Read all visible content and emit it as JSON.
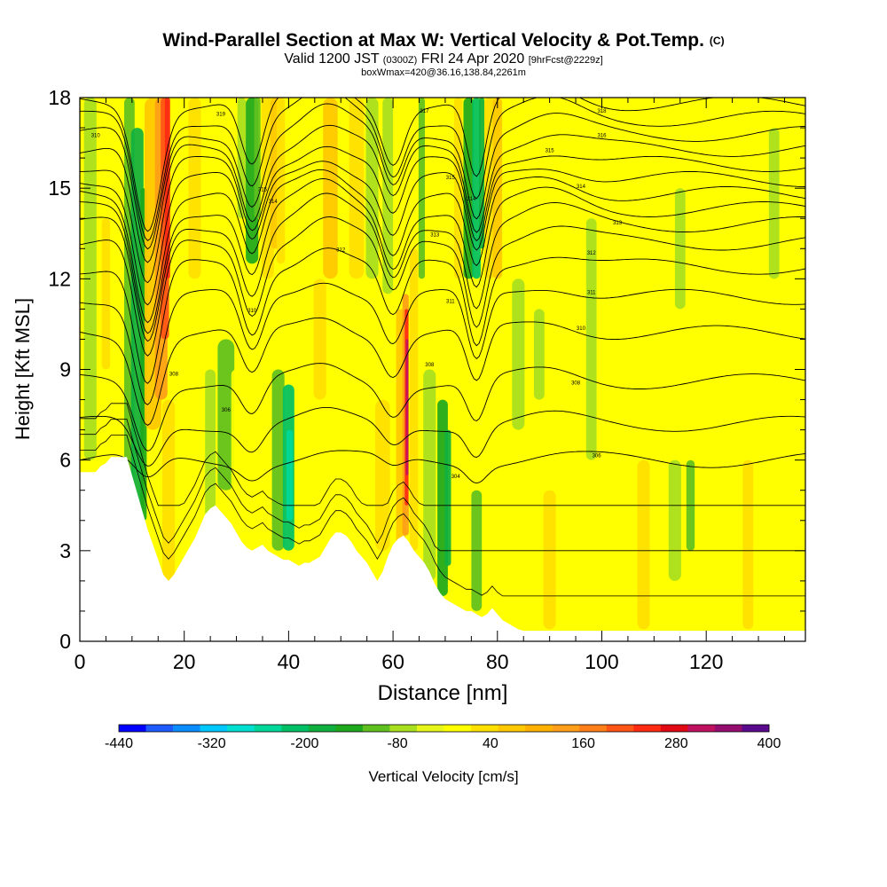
{
  "header": {
    "title": "Wind-Parallel Section at Max W: Vertical Velocity & Pot.Temp.",
    "copyright": "(C)",
    "subtitle_main": "Valid 1200 JST",
    "subtitle_utc": "(0300Z)",
    "subtitle_date": "FRI 24 Apr 2020",
    "subtitle_fcst": "[9hrFcst@2229z]",
    "subsub": "boxWmax=420@36.16,138.84,2261m"
  },
  "chart_data": {
    "type": "heatmap",
    "title": "Wind-Parallel Section at Max W: Vertical Velocity & Pot.Temp.",
    "xlabel": "Distance [nm]",
    "ylabel": "Height [Kft MSL]",
    "xlim": [
      0,
      139
    ],
    "ylim": [
      0,
      18
    ],
    "xticks": [
      0,
      20,
      40,
      60,
      80,
      100,
      120
    ],
    "yticks": [
      0,
      3,
      6,
      9,
      12,
      15,
      18
    ],
    "colorbar": {
      "label": "Vertical Velocity [cm/s]",
      "tick_labels": [
        "-440",
        "-320",
        "-200",
        "-80",
        "40",
        "160",
        "280",
        "400"
      ],
      "tick_values": [
        -440,
        -320,
        -200,
        -80,
        40,
        160,
        280,
        400
      ],
      "min": -440,
      "max": 400,
      "step": 40,
      "colors": [
        "#0000ff",
        "#1e5bff",
        "#0a8cff",
        "#00c8ff",
        "#00dfd0",
        "#00d89a",
        "#00c066",
        "#10b040",
        "#1ea81e",
        "#60c020",
        "#a8e020",
        "#e6f51a",
        "#ffff00",
        "#ffe000",
        "#ffc800",
        "#ffb000",
        "#ff9e18",
        "#ff7f18",
        "#ff5516",
        "#ff2a12",
        "#e10a14",
        "#c01060",
        "#950d6f",
        "#5a0a8c"
      ]
    },
    "terrain_heights_kft": [
      [
        0,
        5.6
      ],
      [
        3,
        5.6
      ],
      [
        4,
        5.8
      ],
      [
        5,
        5.9
      ],
      [
        6,
        6.1
      ],
      [
        9,
        6.1
      ],
      [
        10,
        5.5
      ],
      [
        11,
        4.9
      ],
      [
        12,
        4.3
      ],
      [
        13,
        3.7
      ],
      [
        14,
        3.2
      ],
      [
        15,
        2.7
      ],
      [
        16,
        2.2
      ],
      [
        17,
        2.0
      ],
      [
        18,
        2.2
      ],
      [
        19,
        2.5
      ],
      [
        20,
        2.8
      ],
      [
        21,
        3.1
      ],
      [
        22,
        3.4
      ],
      [
        23,
        3.8
      ],
      [
        24,
        4.2
      ],
      [
        25,
        4.4
      ],
      [
        26,
        4.5
      ],
      [
        27,
        4.3
      ],
      [
        28,
        4.1
      ],
      [
        29,
        3.9
      ],
      [
        30,
        3.6
      ],
      [
        31,
        3.3
      ],
      [
        32,
        3.1
      ],
      [
        33,
        3.0
      ],
      [
        34,
        3.1
      ],
      [
        35,
        3.2
      ],
      [
        36,
        3.0
      ],
      [
        37,
        2.9
      ],
      [
        38,
        2.8
      ],
      [
        39,
        2.7
      ],
      [
        40,
        2.7
      ],
      [
        41,
        2.6
      ],
      [
        42,
        2.5
      ],
      [
        43,
        2.6
      ],
      [
        44,
        2.6
      ],
      [
        45,
        2.7
      ],
      [
        46,
        2.8
      ],
      [
        47,
        3.1
      ],
      [
        48,
        3.4
      ],
      [
        49,
        3.6
      ],
      [
        50,
        3.6
      ],
      [
        51,
        3.5
      ],
      [
        52,
        3.3
      ],
      [
        53,
        3.0
      ],
      [
        54,
        2.8
      ],
      [
        55,
        2.6
      ],
      [
        56,
        2.3
      ],
      [
        57,
        2.0
      ],
      [
        58,
        2.3
      ],
      [
        59,
        2.8
      ],
      [
        60,
        3.2
      ],
      [
        61,
        3.4
      ],
      [
        62,
        3.5
      ],
      [
        63,
        3.3
      ],
      [
        64,
        3.0
      ],
      [
        65,
        2.8
      ],
      [
        66,
        2.6
      ],
      [
        67,
        2.3
      ],
      [
        68,
        1.9
      ],
      [
        69,
        1.6
      ],
      [
        70,
        1.4
      ],
      [
        71,
        1.3
      ],
      [
        72,
        1.2
      ],
      [
        73,
        1.1
      ],
      [
        74,
        1.0
      ],
      [
        75,
        1.0
      ],
      [
        76,
        0.9
      ],
      [
        77,
        0.8
      ],
      [
        78,
        0.9
      ],
      [
        79,
        1.1
      ],
      [
        80,
        0.9
      ],
      [
        81,
        0.7
      ],
      [
        82,
        0.6
      ],
      [
        83,
        0.5
      ],
      [
        84,
        0.4
      ],
      [
        85,
        0.35
      ],
      [
        90,
        0.35
      ],
      [
        100,
        0.35
      ],
      [
        110,
        0.35
      ],
      [
        120,
        0.35
      ],
      [
        130,
        0.35
      ],
      [
        139,
        0.35
      ]
    ],
    "features": [
      {
        "type": "updraft",
        "x": 16,
        "y_from": 7,
        "y_to": 18,
        "peak_cm_s": 320
      },
      {
        "type": "downdraft",
        "x": 11,
        "y_from": 3.5,
        "y_to": 18,
        "peak_cm_s": -200
      },
      {
        "type": "downdraft",
        "x": 33,
        "y_from": 12,
        "y_to": 18,
        "peak_cm_s": -120
      },
      {
        "type": "updraft",
        "x": 37,
        "y_from": 12,
        "y_to": 18,
        "peak_cm_s": 120
      },
      {
        "type": "downdraft",
        "x": 40,
        "y_from": 3,
        "y_to": 9,
        "peak_cm_s": -240
      },
      {
        "type": "updraft",
        "x": 62.5,
        "y_from": 2.5,
        "y_to": 12,
        "peak_cm_s": 420
      },
      {
        "type": "downdraft",
        "x": 70,
        "y_from": 1.5,
        "y_to": 8,
        "peak_cm_s": -160
      },
      {
        "type": "downdraft",
        "x": 76,
        "y_from": 12,
        "y_to": 18,
        "peak_cm_s": -200
      },
      {
        "type": "updraft",
        "x": 80,
        "y_from": 12,
        "y_to": 18,
        "peak_cm_s": 120
      }
    ],
    "isentrope_labels": [
      {
        "x": 3,
        "y": 16.7,
        "text": "310"
      },
      {
        "x": 27,
        "y": 17.4,
        "text": "319"
      },
      {
        "x": 66,
        "y": 17.5,
        "text": "317"
      },
      {
        "x": 100,
        "y": 17.5,
        "text": "318"
      },
      {
        "x": 100,
        "y": 16.7,
        "text": "316"
      },
      {
        "x": 90,
        "y": 16.2,
        "text": "315"
      },
      {
        "x": 96,
        "y": 15.0,
        "text": "314"
      },
      {
        "x": 103,
        "y": 13.8,
        "text": "313"
      },
      {
        "x": 98,
        "y": 12.8,
        "text": "312"
      },
      {
        "x": 98,
        "y": 11.5,
        "text": "311"
      },
      {
        "x": 96,
        "y": 10.3,
        "text": "310"
      },
      {
        "x": 95,
        "y": 8.5,
        "text": "308"
      },
      {
        "x": 99,
        "y": 6.1,
        "text": "306"
      },
      {
        "x": 72,
        "y": 5.4,
        "text": "304"
      },
      {
        "x": 50,
        "y": 12.9,
        "text": "312"
      },
      {
        "x": 37,
        "y": 14.5,
        "text": "314"
      },
      {
        "x": 35,
        "y": 14.9,
        "text": "315"
      },
      {
        "x": 71,
        "y": 15.3,
        "text": "315"
      },
      {
        "x": 75,
        "y": 14.6,
        "text": "314"
      },
      {
        "x": 68,
        "y": 13.4,
        "text": "313"
      },
      {
        "x": 71,
        "y": 11.2,
        "text": "311"
      },
      {
        "x": 67,
        "y": 9.1,
        "text": "308"
      },
      {
        "x": 18,
        "y": 8.8,
        "text": "308"
      },
      {
        "x": 28,
        "y": 7.6,
        "text": "306"
      },
      {
        "x": 33,
        "y": 10.9,
        "text": "310"
      }
    ]
  }
}
